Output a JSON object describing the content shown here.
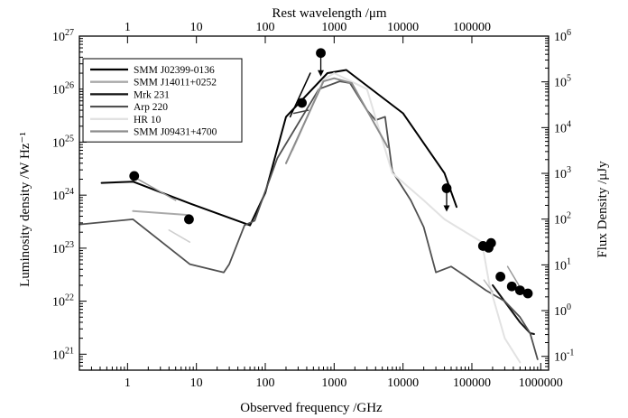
{
  "chart_data": {
    "type": "scatter",
    "top_axis_title": "Rest wavelength  /μm",
    "bottom_axis_title": "Observed frequency  /GHz",
    "left_axis_title": "Luminosity density  /W Hz⁻¹",
    "right_axis_title": "Flux Density  /μJy",
    "x_scale": "log",
    "xlim": [
      0.2,
      1300000
    ],
    "ylim": [
      5e+20,
      1e+27
    ],
    "right_ylim": [
      0.05,
      1000000
    ],
    "top_ticks": [
      {
        "value": 100000,
        "label": "100000"
      },
      {
        "value": 10000,
        "label": "10000"
      },
      {
        "value": 1000,
        "label": "1000"
      },
      {
        "value": 100,
        "label": "100"
      },
      {
        "value": 10,
        "label": "10"
      },
      {
        "value": 1,
        "label": "1"
      }
    ],
    "bottom_ticks": [
      {
        "value": 1,
        "label": "1"
      },
      {
        "value": 10,
        "label": "10"
      },
      {
        "value": 100,
        "label": "100"
      },
      {
        "value": 1000,
        "label": "1000"
      },
      {
        "value": 10000,
        "label": "10000"
      },
      {
        "value": 100000,
        "label": "100000"
      },
      {
        "value": 1000000,
        "label": "1000000"
      }
    ],
    "left_ticks": [
      {
        "value": 1e+21,
        "base": "10",
        "exp": "21"
      },
      {
        "value": 1e+22,
        "base": "10",
        "exp": "22"
      },
      {
        "value": 1e+23,
        "base": "10",
        "exp": "23"
      },
      {
        "value": 1e+24,
        "base": "10",
        "exp": "24"
      },
      {
        "value": 1e+25,
        "base": "10",
        "exp": "25"
      },
      {
        "value": 1e+26,
        "base": "10",
        "exp": "26"
      },
      {
        "value": 1e+27,
        "base": "10",
        "exp": "27"
      }
    ],
    "right_ticks": [
      {
        "value": 0.1,
        "base": "10",
        "exp": "-1"
      },
      {
        "value": 1,
        "base": "10",
        "exp": "0"
      },
      {
        "value": 10,
        "base": "10",
        "exp": "1"
      },
      {
        "value": 100,
        "base": "10",
        "exp": "2"
      },
      {
        "value": 1000,
        "base": "10",
        "exp": "3"
      },
      {
        "value": 10000,
        "base": "10",
        "exp": "4"
      },
      {
        "value": 100000,
        "base": "10",
        "exp": "5"
      },
      {
        "value": 1000000,
        "base": "10",
        "exp": "6"
      }
    ],
    "legend_position": "top-left",
    "series": [
      {
        "name": "SMM J02399-0136",
        "color": "#000000",
        "width": 2.0,
        "points": [
          [
            0.42,
            1.7e+24
          ],
          [
            1.2,
            1.8e+24
          ],
          [
            8,
            7e+23
          ],
          [
            60,
            2.7e+23
          ],
          [
            100,
            1.1e+24
          ],
          [
            200,
            3e+25
          ],
          [
            800,
            2e+26
          ],
          [
            1500,
            2.3e+26
          ],
          [
            10000,
            3.5e+25
          ],
          [
            40000,
            2.6e+24
          ],
          [
            60000,
            6e+23
          ]
        ]
      },
      {
        "name": "SMM J14011+0252",
        "color": "#aaaaaa",
        "width": 2.0,
        "points": [
          [
            1.2,
            5e+23
          ],
          [
            8,
            4.2e+23
          ]
        ]
      },
      {
        "name": "Mrk 231",
        "color": "#111111",
        "width": 2.0,
        "points": [
          [
            200000,
            2e+22
          ],
          [
            500000,
            4e+21
          ],
          [
            700000,
            2.5e+21
          ],
          [
            800000,
            2.4e+21
          ]
        ]
      },
      {
        "name": "Arp 220",
        "color": "#505050",
        "width": 1.8,
        "points": [
          [
            0.2,
            2.8e+23
          ],
          [
            1.2,
            3.5e+23
          ],
          [
            8,
            5e+22
          ],
          [
            25,
            3.5e+22
          ],
          [
            30,
            5e+22
          ],
          [
            50,
            2.7e+23
          ],
          [
            70,
            3.3e+23
          ],
          [
            150,
            5e+24
          ],
          [
            600,
            1e+26
          ],
          [
            1200,
            1.4e+26
          ],
          [
            1700,
            1.3e+26
          ],
          [
            3000,
            4e+25
          ],
          [
            4000,
            2.6e+25
          ],
          [
            5500,
            3e+25
          ],
          [
            7000,
            2.8e+24
          ],
          [
            13000,
            8e+23
          ],
          [
            20000,
            2.5e+23
          ],
          [
            30000,
            3.5e+22
          ],
          [
            50000,
            4.5e+22
          ],
          [
            80000,
            3e+22
          ],
          [
            160000,
            1.6e+22
          ],
          [
            300000,
            1e+22
          ],
          [
            500000,
            5e+21
          ],
          [
            700000,
            2.5e+21
          ],
          [
            900000,
            8e+20
          ]
        ]
      },
      {
        "name": "HR 10",
        "color": "#e2e2e2",
        "width": 2.0,
        "points": [
          [
            250,
            7e+24
          ],
          [
            700,
            1.5e+26
          ],
          [
            1000,
            2e+26
          ],
          [
            3000,
            1e+26
          ],
          [
            7000,
            2.6e+24
          ],
          [
            20000,
            8e+23
          ],
          [
            40000,
            3.5e+23
          ],
          [
            140000,
            1.3e+23
          ],
          [
            180000,
            2e+22
          ],
          [
            300000,
            2e+21
          ],
          [
            500000,
            7e+20
          ]
        ]
      },
      {
        "name": "SMM J09431+4700",
        "color": "#8c8c8c",
        "width": 2.0,
        "points": [
          [
            200,
            4e+24
          ],
          [
            700,
            1.4e+26
          ],
          [
            1000,
            1.6e+26
          ],
          [
            1800,
            1.3e+26
          ],
          [
            3000,
            4e+25
          ],
          [
            6000,
            8e+24
          ]
        ]
      }
    ],
    "extra_segments": [
      {
        "color": "#000000",
        "width": 1.5,
        "points": [
          [
            230,
            3e+25
          ],
          [
            450,
            2e+26
          ]
        ]
      },
      {
        "color": "#444444",
        "width": 1.5,
        "points": [
          [
            260,
            3.5e+25
          ],
          [
            420,
            4e+25
          ]
        ]
      },
      {
        "color": "#999999",
        "width": 1.5,
        "points": [
          [
            1.1,
            2.4e+24
          ],
          [
            5,
            8e+23
          ]
        ]
      },
      {
        "color": "#cfcfcf",
        "width": 1.5,
        "points": [
          [
            4,
            2.2e+23
          ],
          [
            8,
            1.3e+23
          ]
        ]
      },
      {
        "color": "#999999",
        "width": 1.5,
        "points": [
          [
            330000,
            4.5e+22
          ],
          [
            480000,
            2e+22
          ]
        ]
      },
      {
        "color": "#bbbbbb",
        "width": 1.5,
        "points": [
          [
            150000,
            2.5e+22
          ],
          [
            200000,
            1.5e+22
          ]
        ]
      }
    ],
    "markers": [
      {
        "x": 1.25,
        "y": 2.3e+24
      },
      {
        "x": 7.8,
        "y": 3.5e+23
      },
      {
        "x": 340,
        "y": 5.5e+25
      },
      {
        "x": 640,
        "y": 4.8e+26,
        "upper_limit": true
      },
      {
        "x": 43000,
        "y": 1.35e+24,
        "upper_limit": true
      },
      {
        "x": 145000,
        "y": 1.1e+23
      },
      {
        "x": 175000,
        "y": 1.02e+23
      },
      {
        "x": 190000,
        "y": 1.25e+23
      },
      {
        "x": 260000,
        "y": 2.9e+22
      },
      {
        "x": 380000,
        "y": 1.9e+22
      },
      {
        "x": 500000,
        "y": 1.6e+22
      },
      {
        "x": 650000,
        "y": 1.4e+22
      }
    ]
  }
}
